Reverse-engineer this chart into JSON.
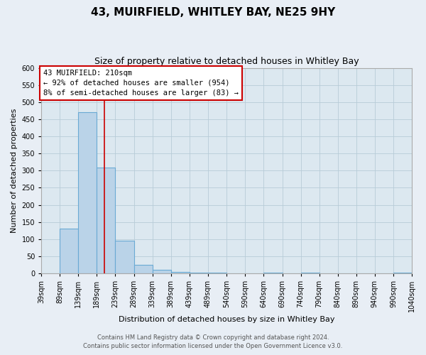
{
  "title": "43, MUIRFIELD, WHITLEY BAY, NE25 9HY",
  "subtitle": "Size of property relative to detached houses in Whitley Bay",
  "xlabel": "Distribution of detached houses by size in Whitley Bay",
  "ylabel": "Number of detached properties",
  "bin_edges": [
    39,
    89,
    139,
    189,
    239,
    289,
    339,
    389,
    439,
    489,
    540,
    590,
    640,
    690,
    740,
    790,
    840,
    890,
    940,
    990,
    1040
  ],
  "bin_counts": [
    0,
    130,
    470,
    310,
    95,
    25,
    10,
    5,
    2,
    2,
    0,
    0,
    2,
    0,
    2,
    0,
    0,
    0,
    0,
    2
  ],
  "bar_color": "#bad3e8",
  "bar_edge_color": "#6aaad4",
  "property_size": 210,
  "vline_color": "#cc0000",
  "annotation_text_line1": "43 MUIRFIELD: 210sqm",
  "annotation_text_line2": "← 92% of detached houses are smaller (954)",
  "annotation_text_line3": "8% of semi-detached houses are larger (83) →",
  "annotation_box_facecolor": "#ffffff",
  "annotation_box_edgecolor": "#cc0000",
  "ylim": [
    0,
    600
  ],
  "yticks": [
    0,
    50,
    100,
    150,
    200,
    250,
    300,
    350,
    400,
    450,
    500,
    550,
    600
  ],
  "plot_bg_color": "#dce8f0",
  "fig_bg_color": "#e8eef5",
  "footer_line1": "Contains HM Land Registry data © Crown copyright and database right 2024.",
  "footer_line2": "Contains public sector information licensed under the Open Government Licence v3.0.",
  "title_fontsize": 11,
  "subtitle_fontsize": 9,
  "ylabel_fontsize": 8,
  "xlabel_fontsize": 8,
  "tick_fontsize": 7,
  "annotation_fontsize": 7.5,
  "footer_fontsize": 6
}
